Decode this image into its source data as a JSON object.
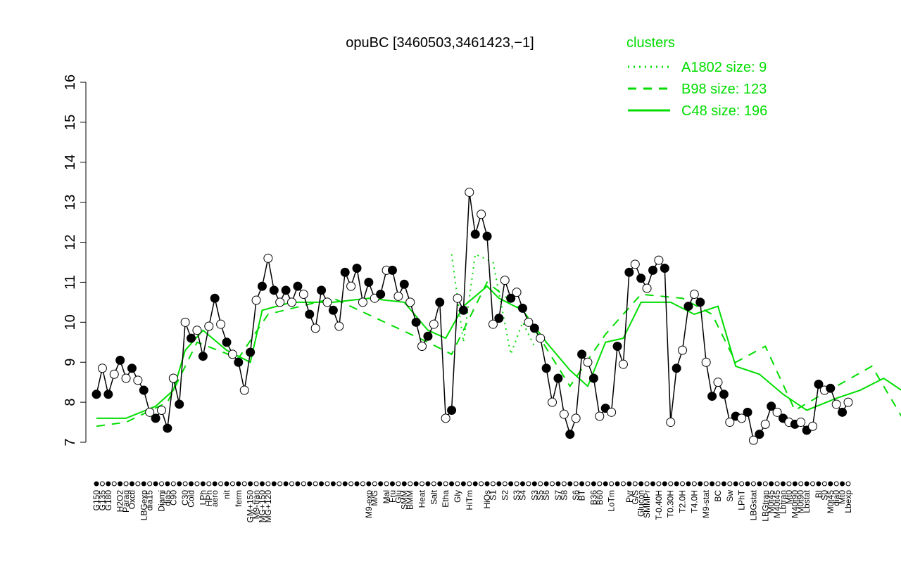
{
  "chart_data": {
    "type": "line",
    "title": "opuBC [3460503,3461423,−1]",
    "legend_title": "clusters",
    "ylim": [
      7,
      16
    ],
    "yticks": [
      7,
      8,
      9,
      10,
      11,
      12,
      13,
      14,
      15,
      16
    ],
    "categories": [
      "G150",
      "G135",
      "G180",
      null,
      "H2O2",
      "Paraq",
      "Oxctl",
      null,
      "LBGexp",
      "dia15",
      null,
      "Diami",
      "dia5",
      "C90",
      null,
      "C30",
      "Cold",
      null,
      "LPh",
      "HPh",
      "aero",
      null,
      "nit",
      null,
      "ferm",
      null,
      "GM+150",
      "M9-tran",
      "MG+150",
      "MG+120",
      null,
      null,
      null,
      null,
      null,
      null,
      null,
      null,
      null,
      null,
      null,
      null,
      null,
      null,
      null,
      null,
      "M9-exp",
      "M/G",
      null,
      "Mal",
      "Fru",
      "Glu",
      "SMM",
      "BMM",
      null,
      "Heat",
      null,
      "Salt",
      null,
      "Etha",
      null,
      "Gly",
      null,
      "HiTm",
      null,
      null,
      "HiOs",
      "S1",
      null,
      "S2",
      null,
      "S3",
      "S4",
      null,
      "S3",
      "S5",
      "S6",
      null,
      "S7",
      "S8",
      null,
      "S6",
      "BT",
      null,
      "B36",
      "B60",
      null,
      "LoTm",
      null,
      null,
      "Pyr",
      "G/S",
      "Glucon",
      "SMMPr",
      null,
      "T-0.40H",
      null,
      "T0.30H",
      null,
      "T2.0H",
      null,
      "T4.0H",
      null,
      "M9-stat",
      null,
      "BC",
      null,
      "Sw",
      null,
      "LPhT",
      null,
      "LBGstat",
      null,
      "LBGtran",
      "M0t45",
      "M40t45",
      "Lbtran",
      "Mt0",
      "M40t90",
      "M0t90",
      "Lbstat",
      null,
      "BI",
      "S0",
      "M0t45",
      "dia0",
      "Mt0",
      "Lbexp"
    ],
    "values": [
      8.2,
      8.85,
      8.2,
      8.7,
      9.05,
      8.6,
      8.85,
      8.55,
      8.3,
      7.75,
      7.6,
      7.8,
      7.35,
      8.6,
      7.95,
      10.0,
      9.6,
      9.8,
      9.15,
      9.9,
      10.6,
      9.95,
      9.5,
      9.2,
      9.0,
      8.3,
      9.25,
      10.55,
      10.9,
      11.6,
      10.8,
      10.5,
      10.8,
      10.5,
      10.9,
      10.7,
      10.2,
      9.85,
      10.8,
      10.5,
      10.3,
      9.9,
      11.25,
      10.9,
      11.35,
      10.5,
      11.0,
      10.6,
      10.7,
      11.3,
      11.3,
      10.65,
      10.95,
      10.5,
      10.0,
      9.4,
      9.65,
      9.95,
      10.5,
      7.6,
      7.8,
      10.6,
      10.3,
      13.25,
      12.2,
      12.7,
      12.15,
      9.95,
      10.1,
      11.05,
      10.6,
      10.75,
      10.35,
      10.0,
      9.85,
      9.6,
      8.85,
      8.0,
      8.6,
      7.7,
      7.2,
      7.6,
      9.2,
      9.0,
      8.6,
      7.65,
      7.85,
      7.75,
      9.4,
      8.95,
      11.25,
      11.45,
      11.1,
      10.85,
      11.3,
      11.55,
      11.35,
      7.5,
      8.85,
      9.3,
      10.4,
      10.7,
      10.5,
      9.0,
      8.15,
      8.5,
      8.2,
      7.5,
      7.65,
      7.6,
      7.75,
      7.05,
      7.2,
      7.45,
      7.9,
      7.75,
      7.6,
      7.5,
      7.45,
      7.5,
      7.3,
      7.4,
      8.45,
      8.3,
      8.35,
      7.95,
      7.75,
      8.0
    ],
    "color": "#000000",
    "series": [
      {
        "name": "A1802 size: 9",
        "color": "#00dd00",
        "style": "dotted",
        "x": [
          60,
          62,
          64,
          67,
          70,
          72,
          74
        ],
        "values": [
          11.7,
          9.5,
          11.7,
          11.5,
          9.2,
          10.0,
          9.4
        ]
      },
      {
        "name": "B98 size: 123",
        "color": "#00dd00",
        "style": "dashed",
        "x": [
          0,
          5,
          12,
          17,
          24,
          29,
          40,
          56,
          60,
          66,
          72,
          80,
          86,
          92,
          99,
          104,
          108,
          113,
          118,
          125,
          131,
          137
        ],
        "values": [
          7.4,
          7.5,
          8.0,
          9.5,
          9.1,
          10.2,
          10.6,
          9.5,
          9.2,
          11.0,
          10.3,
          8.4,
          9.7,
          10.7,
          10.6,
          10.2,
          9.0,
          9.4,
          7.8,
          8.4,
          8.9,
          7.4
        ]
      },
      {
        "name": "C48 size: 196",
        "color": "#00dd00",
        "style": "solid",
        "x": [
          0,
          5,
          10,
          13,
          15,
          18,
          22,
          26,
          28,
          33,
          40,
          46,
          52,
          56,
          59,
          62,
          66,
          68,
          72,
          76,
          80,
          83,
          86,
          89,
          92,
          97,
          101,
          105,
          108,
          112,
          116,
          120,
          125,
          129,
          133,
          137
        ],
        "values": [
          7.6,
          7.6,
          7.9,
          8.3,
          9.3,
          9.8,
          9.3,
          9.0,
          10.3,
          10.5,
          10.5,
          10.6,
          10.5,
          9.8,
          9.6,
          10.4,
          10.9,
          10.6,
          10.3,
          9.5,
          8.8,
          8.4,
          9.5,
          9.6,
          10.5,
          10.5,
          10.2,
          10.4,
          8.9,
          8.7,
          8.2,
          7.8,
          8.1,
          8.3,
          8.6,
          8.2
        ]
      }
    ]
  }
}
